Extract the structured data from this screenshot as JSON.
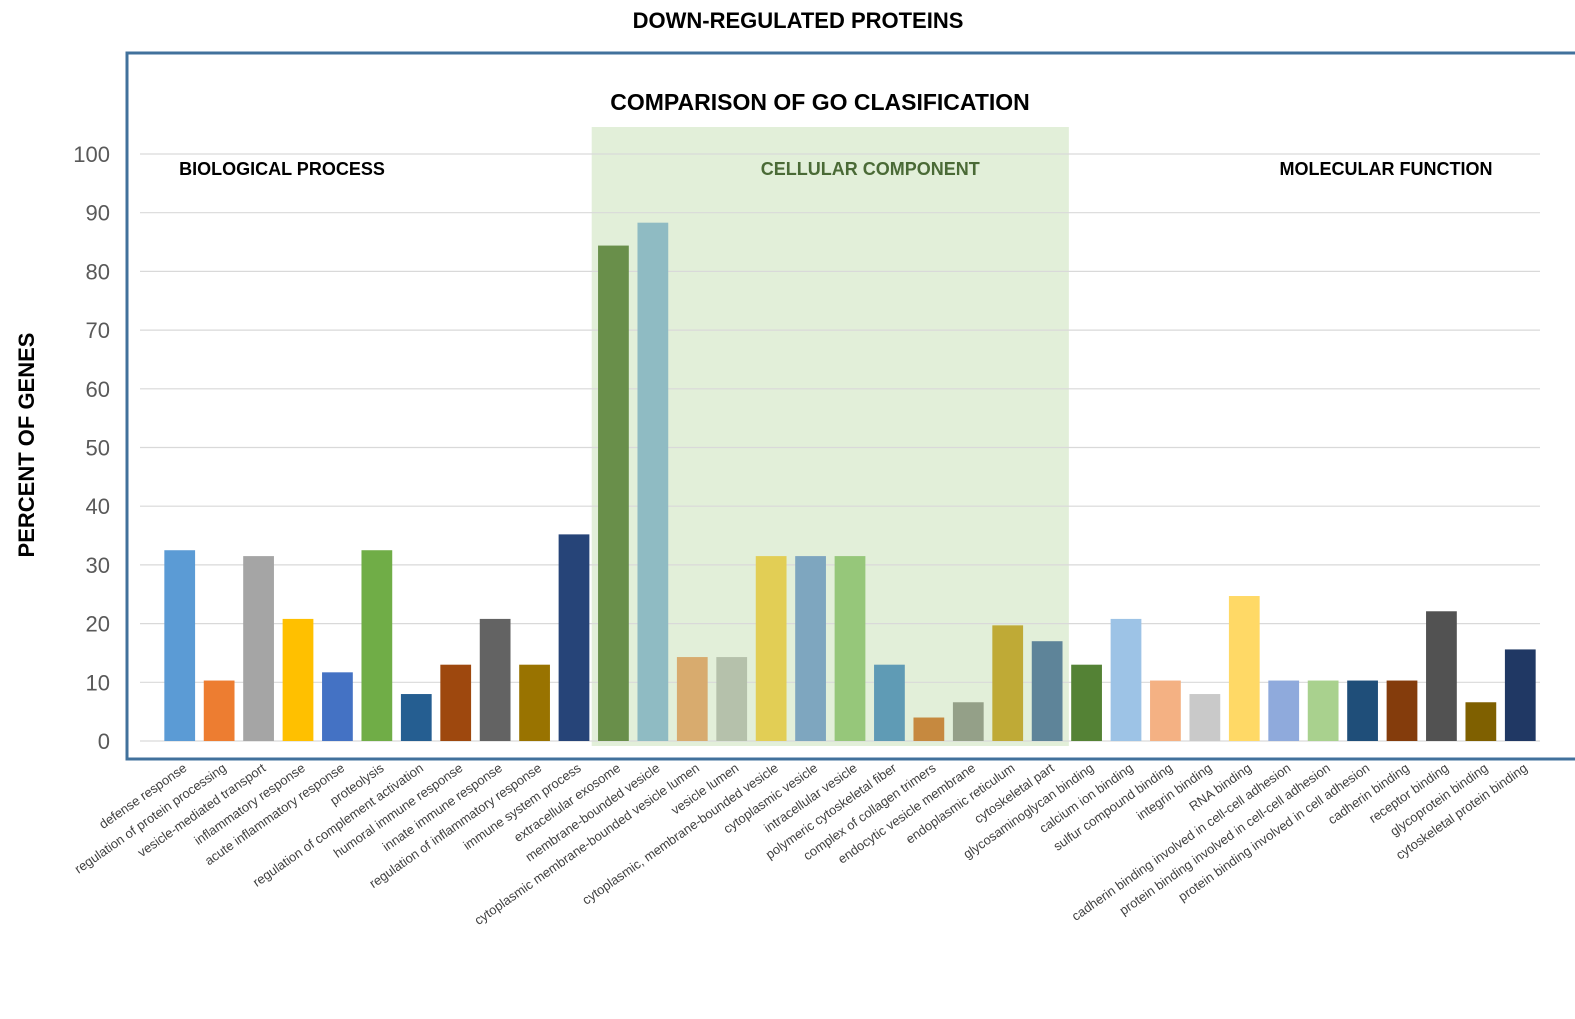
{
  "chart_data": {
    "type": "bar",
    "title": "DOWN-REGULATED PROTEINS",
    "subtitle": "COMPARISON OF GO CLASIFICATION",
    "xlabel": "",
    "ylabel": "PERCENT OF GENES",
    "ylim": [
      0,
      100
    ],
    "yticks": [
      0,
      10,
      20,
      30,
      40,
      50,
      60,
      70,
      80,
      90,
      100
    ],
    "grid": true,
    "legend": "none",
    "groups": [
      {
        "label": "BIOLOGICAL PROCESS",
        "start": 0,
        "end": 10,
        "highlight": false,
        "label_color": "#000000"
      },
      {
        "label": "CELLULAR COMPONENT",
        "start": 11,
        "end": 22,
        "highlight": true,
        "label_color": "#4a6a36",
        "shade_color": "#e2efd9"
      },
      {
        "label": "MOLECULAR FUNCTION",
        "start": 23,
        "end": 34,
        "highlight": false,
        "label_color": "#000000"
      }
    ],
    "categories": [
      "defense response",
      "regulation of protein processing",
      "vesicle-mediated transport",
      "inflammatory response",
      "acute inflammatory response",
      "proteolysis",
      "regulation of complement activation",
      "humoral immune response",
      "innate immune response",
      "regulation of inflammatory response",
      "immune system process",
      "extracellular exosome",
      "membrane-bounded vesicle",
      "cytoplasmic membrane-bounded vesicle lumen",
      "vesicle lumen",
      "cytoplasmic, membrane-bounded vesicle",
      "cytoplasmic vesicle",
      "intracellular vesicle",
      "polymeric cytoskeletal fiber",
      "complex of collagen trimers",
      "endocytic vesicle membrane",
      "endoplasmic reticulum",
      "cytoskeletal part",
      "glycosaminoglycan binding",
      "calcium ion binding",
      "sulfur compound binding",
      "integrin binding",
      "RNA binding",
      "cadherin binding involved in cell-cell adhesion",
      "protein binding involved in cell-cell adhesion",
      "protein binding involved in cell adhesion",
      "cadherin binding",
      "receptor binding",
      "glycoprotein binding",
      "cytoskeletal protein binding"
    ],
    "values": [
      32.5,
      10.3,
      31.5,
      20.8,
      11.7,
      32.5,
      8.0,
      13.0,
      20.8,
      13.0,
      35.2,
      84.4,
      88.3,
      14.3,
      14.3,
      31.5,
      31.5,
      31.5,
      13.0,
      4.0,
      6.6,
      19.7,
      17.0,
      13.0,
      20.8,
      10.3,
      8.0,
      24.7,
      10.3,
      10.3,
      10.3,
      10.3,
      22.1,
      6.6,
      15.6
    ],
    "colors": [
      "#5b9bd5",
      "#ed7d31",
      "#a5a5a5",
      "#ffc000",
      "#4472c4",
      "#70ad47",
      "#255e91",
      "#9e480e",
      "#636363",
      "#997300",
      "#264478",
      "#698f4a",
      "#8fbbc3",
      "#d8ab6e",
      "#b5c1ab",
      "#e2ce55",
      "#7ea6bf",
      "#96c77a",
      "#5f9bb5",
      "#c6893f",
      "#94a088",
      "#bfaa36",
      "#5e8499",
      "#548235",
      "#9dc3e6",
      "#f4b183",
      "#c9c9c9",
      "#ffd966",
      "#8faadc",
      "#a9d18e",
      "#1f4e79",
      "#843c0c",
      "#525252",
      "#7f6000",
      "#203864"
    ]
  }
}
